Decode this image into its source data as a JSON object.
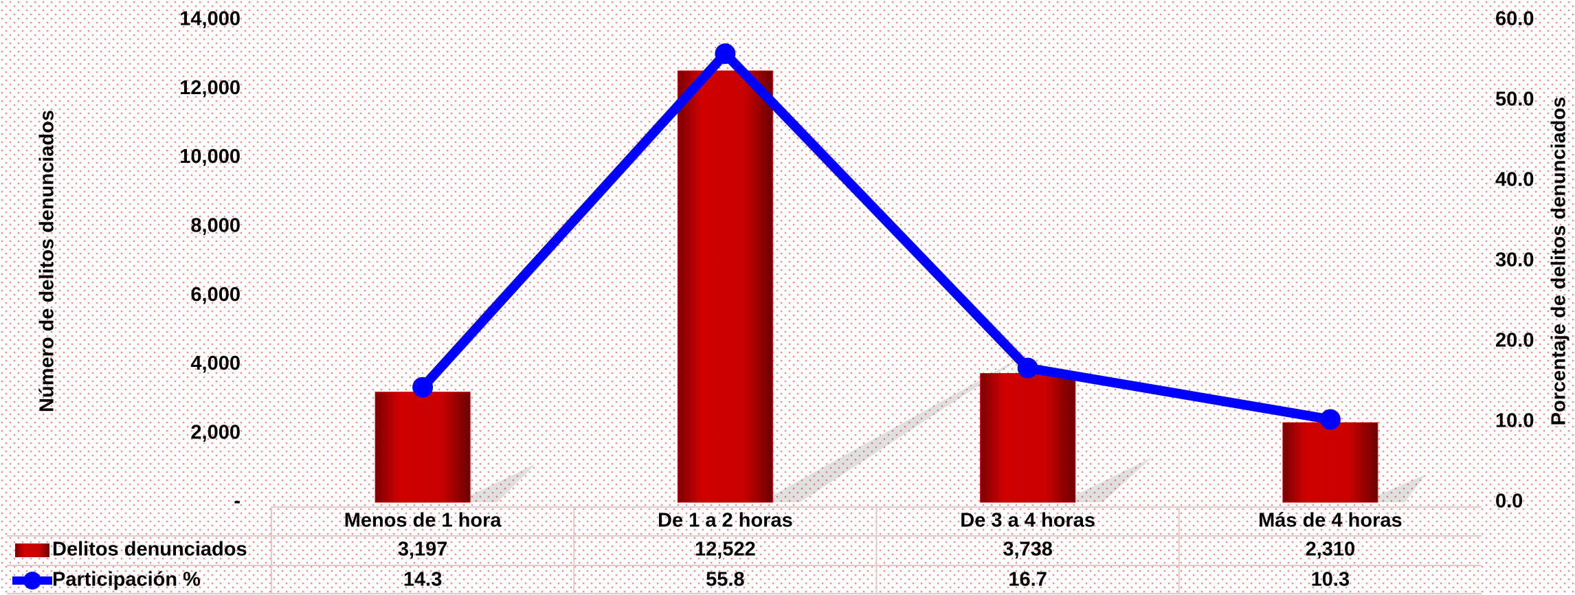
{
  "chart_data": {
    "type": "bar",
    "y_label": "Número de delitos denunciados",
    "y2_label": "Porcentaje de delitos denunciados",
    "categories": [
      "Menos de 1 hora",
      "De 1 a 2 horas",
      "De 3 a 4 horas",
      "Más de 4 horas"
    ],
    "series": [
      {
        "name": "Delitos denunciados",
        "type": "bar",
        "color": "#c00000",
        "values": [
          3197,
          12522,
          3738,
          2310
        ],
        "value_labels": [
          "3,197",
          "12,522",
          "3,738",
          "2,310"
        ]
      },
      {
        "name": "Participación %",
        "type": "line",
        "axis": "y2",
        "color": "#0000ff",
        "values": [
          14.3,
          55.8,
          16.7,
          10.3
        ]
      }
    ],
    "ylim": [
      0,
      14000
    ],
    "yticks": [
      {
        "value": 0,
        "label": "-"
      },
      {
        "value": 2000,
        "label": "2,000"
      },
      {
        "value": 4000,
        "label": "4,000"
      },
      {
        "value": 6000,
        "label": "6,000"
      },
      {
        "value": 8000,
        "label": "8,000"
      },
      {
        "value": 10000,
        "label": "10,000"
      },
      {
        "value": 12000,
        "label": "12,000"
      },
      {
        "value": 14000,
        "label": "14,000"
      }
    ],
    "y2lim": [
      0,
      60
    ],
    "y2ticks": [
      {
        "value": 0,
        "label": "0.0"
      },
      {
        "value": 10,
        "label": "10.0"
      },
      {
        "value": 20,
        "label": "20.0"
      },
      {
        "value": 30,
        "label": "30.0"
      },
      {
        "value": 40,
        "label": "40.0"
      },
      {
        "value": 50,
        "label": "50.0"
      },
      {
        "value": 60,
        "label": "60.0"
      }
    ],
    "grid": false
  }
}
